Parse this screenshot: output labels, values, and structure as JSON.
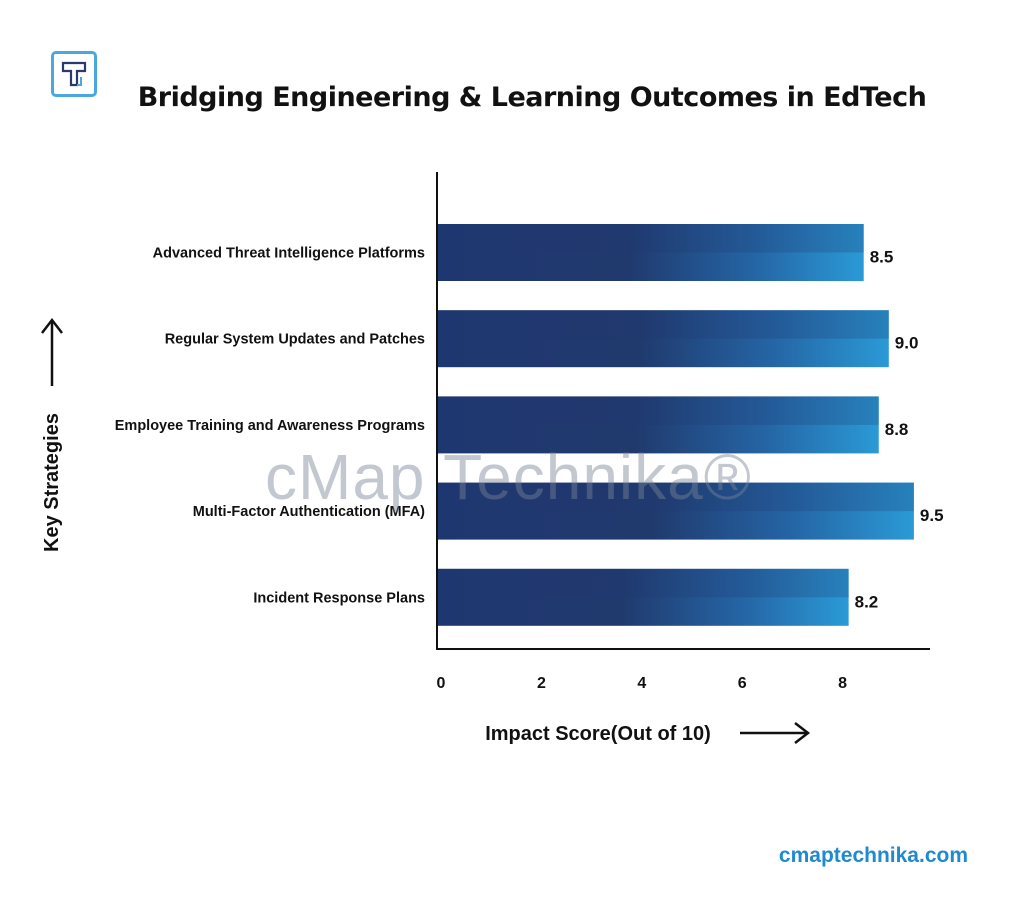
{
  "header": {
    "title": "Bridging Engineering & Learning Outcomes in EdTech",
    "logo_letter": "T"
  },
  "watermark": "cMap Technika®",
  "footer": {
    "url": "cmaptechnika.com"
  },
  "colors": {
    "bar_dark": "#1f3770",
    "bar_light": "#2a9ad6",
    "footer": "#1f8ad0"
  },
  "chart_data": {
    "type": "bar",
    "orientation": "horizontal",
    "title": "Bridging Engineering & Learning Outcomes in EdTech",
    "xlabel": "Impact Score(Out of 10)",
    "ylabel": "Key Strategies",
    "categories": [
      "Advanced Threat Intelligence Platforms",
      "Regular System Updates and Patches",
      "Employee Training and Awareness Programs",
      "Multi-Factor Authentication (MFA)",
      "Incident Response Plans"
    ],
    "values": [
      8.5,
      9.0,
      8.8,
      9.5,
      8.2
    ],
    "data_labels": [
      "8.5",
      "9.0",
      "8.8",
      "9.5",
      "8.2"
    ],
    "xticks": [
      0,
      2,
      4,
      6,
      8
    ],
    "xlim": [
      0,
      9.75
    ],
    "grid": false,
    "legend": "none"
  }
}
